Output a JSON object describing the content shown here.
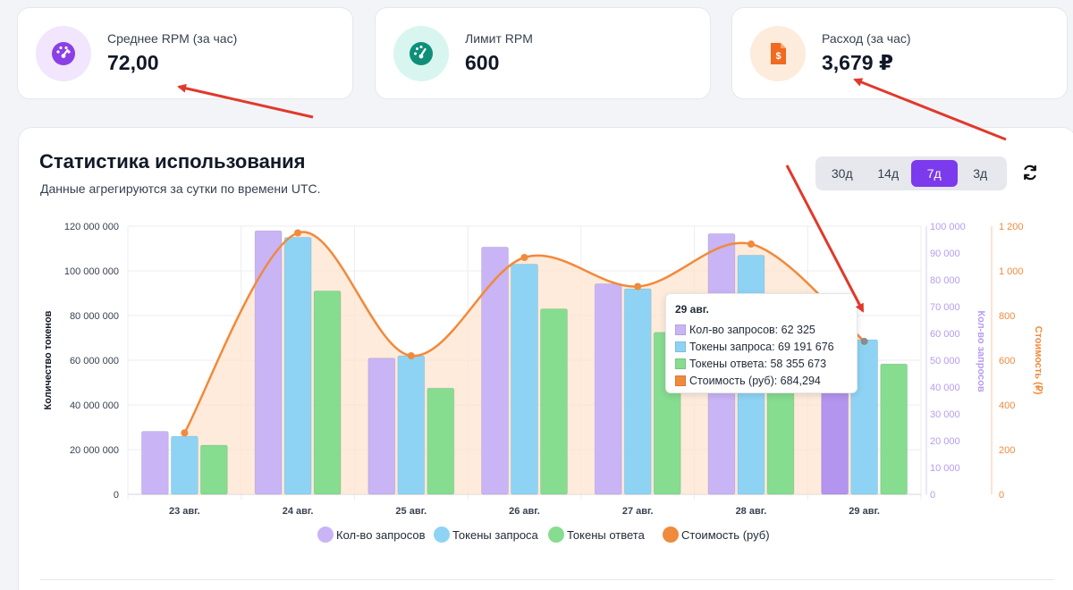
{
  "stats": [
    {
      "label": "Среднее RPM (за час)",
      "value": "72,00",
      "icon": "speedometer-icon",
      "icon_bg": "#f1e6fd",
      "icon_color": "#8b3fe6"
    },
    {
      "label": "Лимит RPM",
      "value": "600",
      "icon": "gauge-icon",
      "icon_bg": "#d8f6ef",
      "icon_color": "#0f8f7a"
    },
    {
      "label": "Расход (за час)",
      "value": "3,679 ₽",
      "icon": "invoice-icon",
      "icon_bg": "#fdebdc",
      "icon_color": "#f06a1f"
    }
  ],
  "panel": {
    "title": "Статистика использования",
    "subtitle": "Данные агрегируются за сутки по времени UTC.",
    "ranges": [
      "30д",
      "14д",
      "7д",
      "3д"
    ],
    "active_range": "7д",
    "refresh_icon": "refresh-icon"
  },
  "tooltip": {
    "title": "29 авг.",
    "rows": [
      {
        "label": "Кол-во запросов: 62 325",
        "color": "#c9b4f5"
      },
      {
        "label": "Токены запроса: 69 191 676",
        "color": "#8fd3f4"
      },
      {
        "label": "Токены ответа: 58 355 673",
        "color": "#86dc8f"
      },
      {
        "label": "Стоимость (руб): 684,294",
        "color": "#f08a3c"
      }
    ]
  },
  "chart_data": {
    "type": "bar",
    "categories": [
      "23 авг.",
      "24 авг.",
      "25 авг.",
      "26 авг.",
      "27 авг.",
      "28 авг.",
      "29 авг."
    ],
    "series": [
      {
        "name": "Кол-во запросов",
        "axis": "right1",
        "kind": "bar",
        "color": "#c9b4f5",
        "values": [
          23500,
          98300,
          50800,
          92200,
          78500,
          97200,
          62325
        ]
      },
      {
        "name": "Токены запроса",
        "axis": "left",
        "kind": "bar",
        "color": "#8fd3f4",
        "values": [
          26000000,
          115000000,
          62000000,
          103000000,
          92000000,
          107000000,
          69191676
        ]
      },
      {
        "name": "Токены ответа",
        "axis": "left",
        "kind": "bar",
        "color": "#86dc8f",
        "values": [
          22000000,
          91000000,
          47500000,
          83000000,
          72500000,
          68000000,
          58355673
        ]
      },
      {
        "name": "Стоимость (руб)",
        "axis": "right2",
        "kind": "area-line",
        "color": "#f08a3c",
        "values": [
          275,
          1170,
          620,
          1060,
          930,
          1120,
          684.294
        ]
      }
    ],
    "axes": {
      "left": {
        "label": "Количество токенов",
        "ylim": [
          0,
          120000000
        ],
        "ticks": [
          "0",
          "20 000 000",
          "40 000 000",
          "60 000 000",
          "80 000 000",
          "100 000 000",
          "120 000 000"
        ]
      },
      "right1": {
        "label": "Кол-во запросов",
        "ylim": [
          0,
          100000
        ],
        "ticks": [
          "0",
          "10 000",
          "20 000",
          "30 000",
          "40 000",
          "50 000",
          "60 000",
          "70 000",
          "80 000",
          "90 000",
          "100 000"
        ],
        "color": "#b79cf0"
      },
      "right2": {
        "label": "Стоимость (₽)",
        "ylim": [
          0,
          1200
        ],
        "ticks": [
          "0",
          "200",
          "400",
          "600",
          "800",
          "1 000",
          "1 200"
        ],
        "color": "#f08a3c"
      }
    },
    "legend": "bottom"
  }
}
